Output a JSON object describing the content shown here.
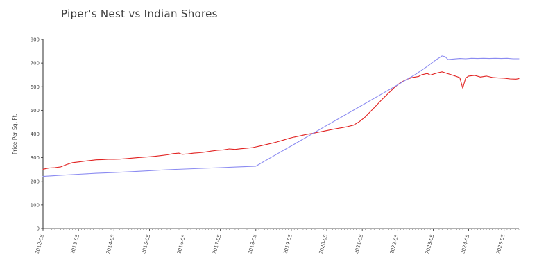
{
  "page": {
    "background": "#ffffff"
  },
  "chart_data": {
    "type": "line",
    "title": "Piper's Nest vs Indian Shores",
    "xlabel": "",
    "ylabel": "Price Per Sq. Ft.",
    "ylim": [
      0,
      800
    ],
    "y_ticks": [
      0,
      100,
      200,
      300,
      400,
      500,
      600,
      700,
      800
    ],
    "x_tick_labels": [
      "2012-05",
      "2013-05",
      "2014-05",
      "2015-05",
      "2016-05",
      "2017-05",
      "2018-05",
      "2019-05",
      "2020-05",
      "2021-05",
      "2022-05",
      "2023-05",
      "2024-05",
      "2025-05"
    ],
    "grid": false,
    "legend": "none",
    "axis_color": "#2d2d2d",
    "label_color": "#444444",
    "series": [
      {
        "name": "Piper's Nest",
        "color": "#e12120",
        "points": [
          [
            "2012-05",
            251
          ],
          [
            "2012-07",
            256
          ],
          [
            "2012-09",
            258
          ],
          [
            "2012-11",
            261
          ],
          [
            "2013-01",
            271
          ],
          [
            "2013-03",
            279
          ],
          [
            "2013-05",
            282
          ],
          [
            "2013-07",
            285
          ],
          [
            "2013-09",
            288
          ],
          [
            "2013-11",
            291
          ],
          [
            "2014-01",
            292
          ],
          [
            "2014-03",
            293
          ],
          [
            "2014-05",
            293
          ],
          [
            "2014-07",
            294
          ],
          [
            "2014-09",
            296
          ],
          [
            "2014-11",
            298
          ],
          [
            "2015-01",
            300
          ],
          [
            "2015-03",
            302
          ],
          [
            "2015-05",
            304
          ],
          [
            "2015-07",
            306
          ],
          [
            "2015-09",
            309
          ],
          [
            "2015-11",
            312
          ],
          [
            "2016-01",
            317
          ],
          [
            "2016-03",
            319
          ],
          [
            "2016-04",
            314
          ],
          [
            "2016-06",
            316
          ],
          [
            "2016-08",
            319
          ],
          [
            "2016-10",
            321
          ],
          [
            "2016-12",
            324
          ],
          [
            "2017-02",
            328
          ],
          [
            "2017-04",
            331
          ],
          [
            "2017-06",
            333
          ],
          [
            "2017-08",
            337
          ],
          [
            "2017-10",
            335
          ],
          [
            "2017-12",
            338
          ],
          [
            "2018-02",
            340
          ],
          [
            "2018-04",
            343
          ],
          [
            "2018-06",
            348
          ],
          [
            "2018-08",
            354
          ],
          [
            "2018-10",
            360
          ],
          [
            "2018-12",
            366
          ],
          [
            "2019-02",
            373
          ],
          [
            "2019-04",
            381
          ],
          [
            "2019-06",
            387
          ],
          [
            "2019-08",
            392
          ],
          [
            "2019-10",
            398
          ],
          [
            "2019-12",
            402
          ],
          [
            "2020-02",
            407
          ],
          [
            "2020-04",
            412
          ],
          [
            "2020-06",
            417
          ],
          [
            "2020-08",
            422
          ],
          [
            "2020-10",
            426
          ],
          [
            "2020-12",
            431
          ],
          [
            "2021-02",
            437
          ],
          [
            "2021-04",
            452
          ],
          [
            "2021-06",
            472
          ],
          [
            "2021-08",
            498
          ],
          [
            "2021-10",
            524
          ],
          [
            "2021-12",
            550
          ],
          [
            "2022-02",
            574
          ],
          [
            "2022-04",
            598
          ],
          [
            "2022-06",
            618
          ],
          [
            "2022-08",
            631
          ],
          [
            "2022-10",
            639
          ],
          [
            "2022-12",
            643
          ],
          [
            "2023-01",
            650
          ],
          [
            "2023-03",
            656
          ],
          [
            "2023-04",
            649
          ],
          [
            "2023-06",
            657
          ],
          [
            "2023-08",
            663
          ],
          [
            "2023-10",
            655
          ],
          [
            "2023-12",
            647
          ],
          [
            "2024-01",
            643
          ],
          [
            "2024-02",
            638
          ],
          [
            "2024-03",
            594
          ],
          [
            "2024-04",
            637
          ],
          [
            "2024-05",
            645
          ],
          [
            "2024-07",
            648
          ],
          [
            "2024-09",
            641
          ],
          [
            "2024-11",
            645
          ],
          [
            "2025-01",
            639
          ],
          [
            "2025-03",
            637
          ],
          [
            "2025-05",
            636
          ],
          [
            "2025-07",
            633
          ],
          [
            "2025-09",
            632
          ],
          [
            "2025-10",
            634
          ]
        ]
      },
      {
        "name": "Indian Shores",
        "color": "#8b8bf1",
        "points": [
          [
            "2012-05",
            221
          ],
          [
            "2012-11",
            226
          ],
          [
            "2013-05",
            230
          ],
          [
            "2013-11",
            234
          ],
          [
            "2014-05",
            237
          ],
          [
            "2014-11",
            241
          ],
          [
            "2015-05",
            245
          ],
          [
            "2015-11",
            249
          ],
          [
            "2016-05",
            252
          ],
          [
            "2016-11",
            255
          ],
          [
            "2017-05",
            258
          ],
          [
            "2017-11",
            261
          ],
          [
            "2018-05",
            264
          ],
          [
            "2018-11",
            307
          ],
          [
            "2019-05",
            350
          ],
          [
            "2019-11",
            393
          ],
          [
            "2020-05",
            436
          ],
          [
            "2020-11",
            479
          ],
          [
            "2021-05",
            522
          ],
          [
            "2021-11",
            565
          ],
          [
            "2022-05",
            608
          ],
          [
            "2022-11",
            652
          ],
          [
            "2023-03",
            686
          ],
          [
            "2023-06",
            714
          ],
          [
            "2023-08",
            730
          ],
          [
            "2023-09",
            727
          ],
          [
            "2023-10",
            715
          ],
          [
            "2023-12",
            717
          ],
          [
            "2024-02",
            719
          ],
          [
            "2024-04",
            718
          ],
          [
            "2024-06",
            720
          ],
          [
            "2024-08",
            719
          ],
          [
            "2024-10",
            720
          ],
          [
            "2024-12",
            719
          ],
          [
            "2025-02",
            720
          ],
          [
            "2025-04",
            719
          ],
          [
            "2025-06",
            720
          ],
          [
            "2025-08",
            718
          ],
          [
            "2025-10",
            718
          ]
        ]
      }
    ]
  }
}
